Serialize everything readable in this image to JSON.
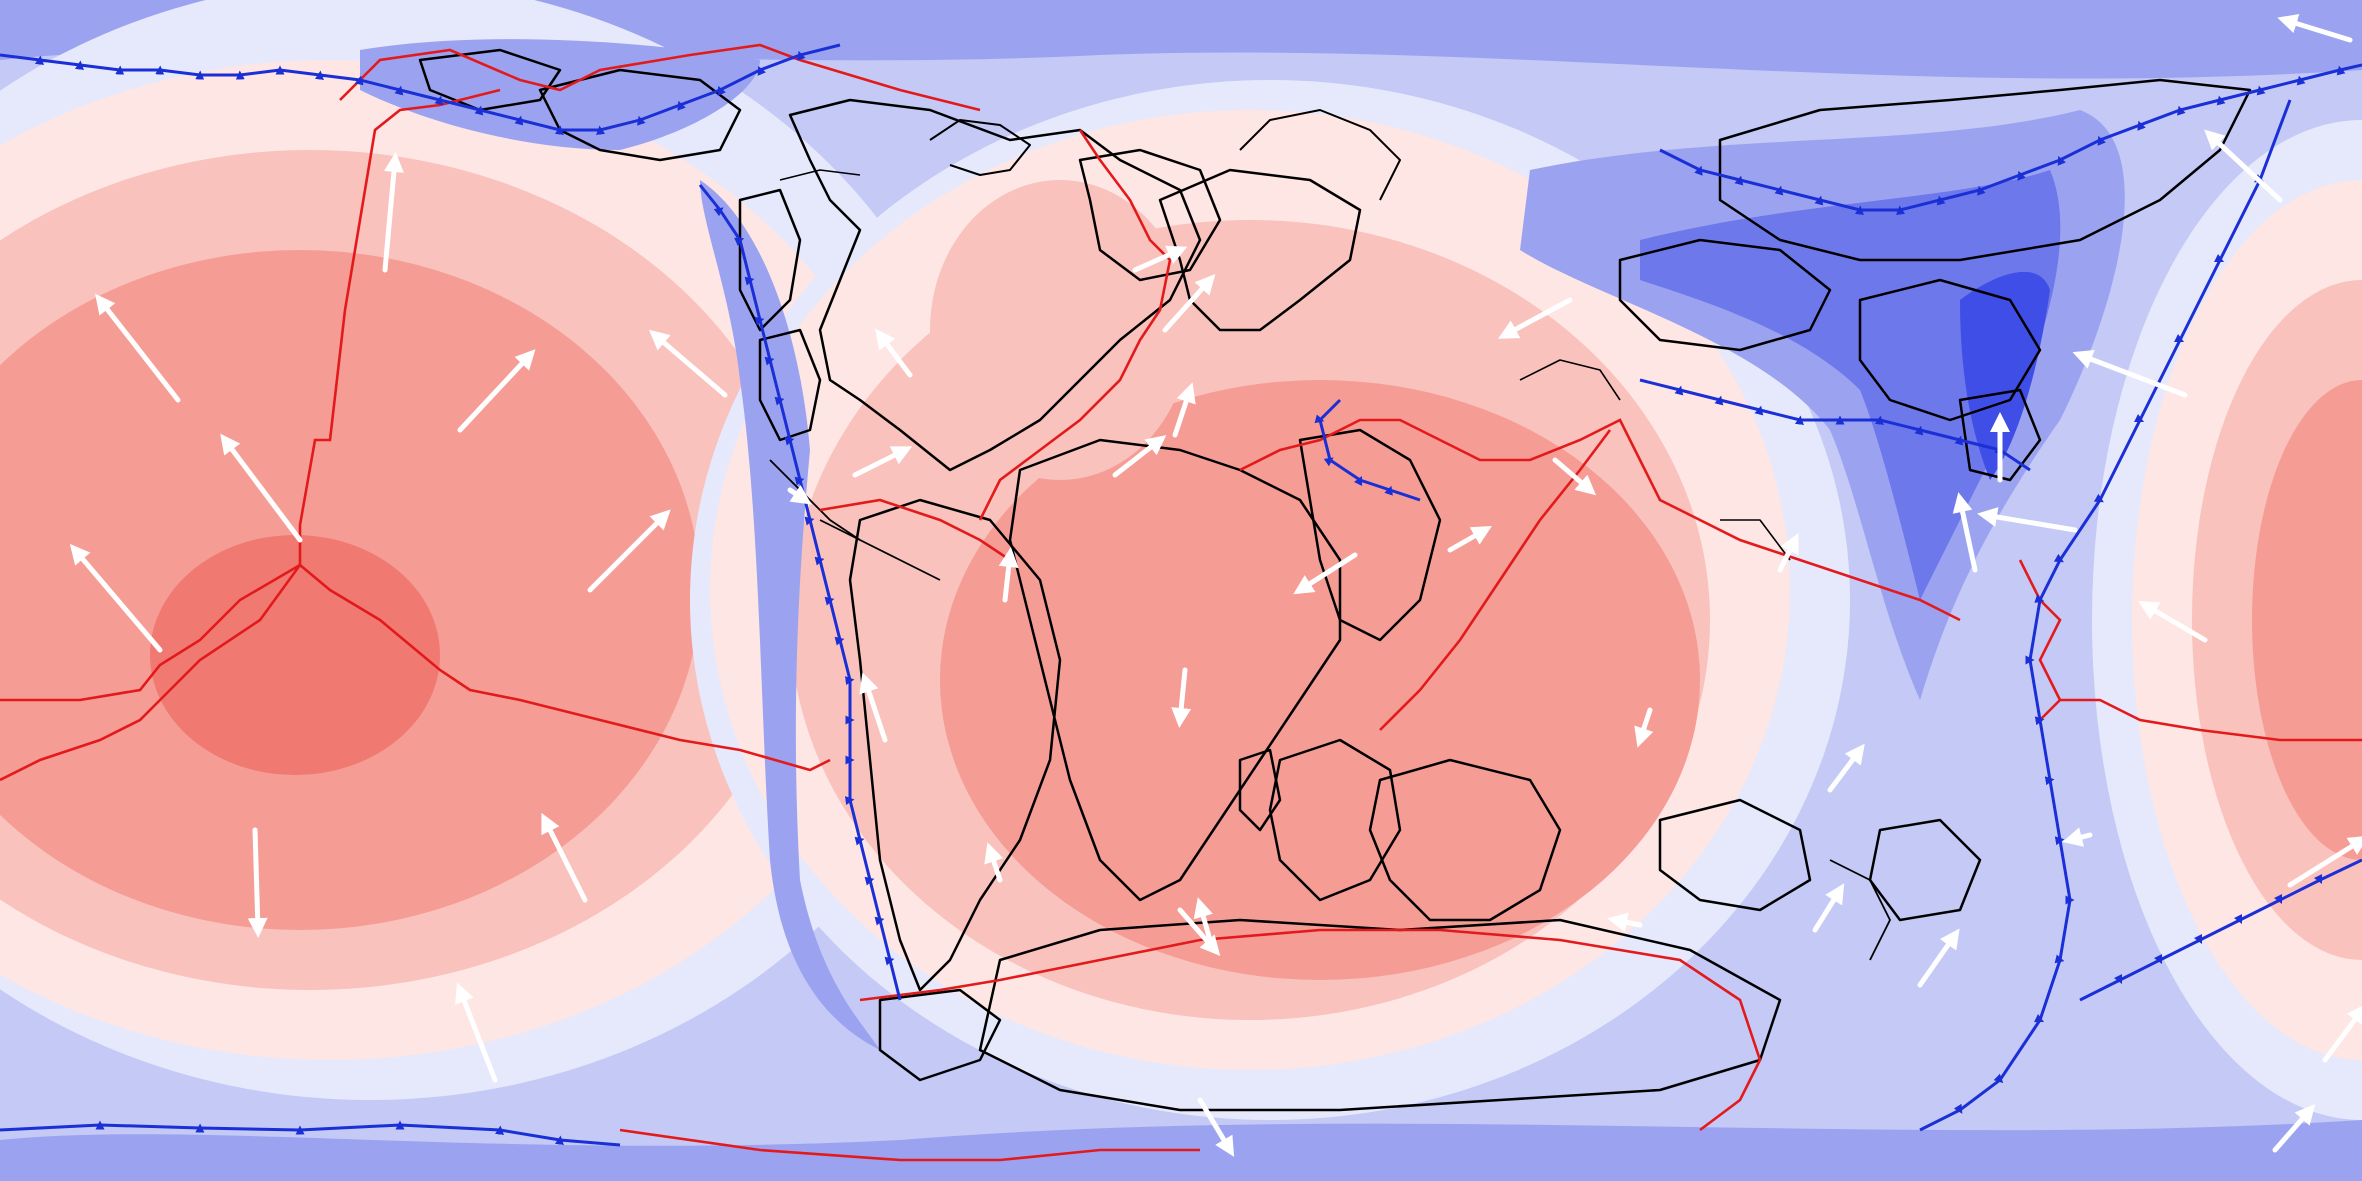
{
  "map": {
    "kind": "global paleogeographic plate reconstruction",
    "projection": "equirectangular",
    "colors": {
      "background": "#ffffff",
      "field_blue_0": "#e6e9fb",
      "field_blue_1": "#c4c9f6",
      "field_blue_2": "#9ba3f0",
      "field_blue_3": "#6d78ea",
      "field_blue_4": "#3f4ee6",
      "field_red_0": "#fde6e4",
      "field_red_1": "#f9c2bd",
      "field_red_2": "#f59c95",
      "field_red_3": "#f07a72",
      "ridge": "#e31a1c",
      "subduction": "#1a2fd6",
      "coastline": "#000000",
      "velocity_arrow": "#ffffff"
    }
  }
}
